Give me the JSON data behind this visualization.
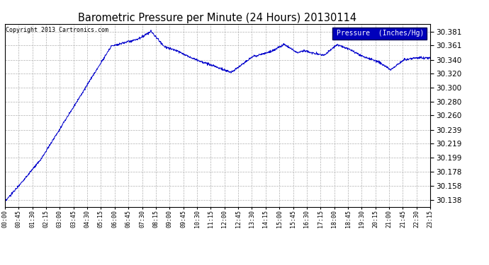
{
  "title": "Barometric Pressure per Minute (24 Hours) 20130114",
  "copyright": "Copyright 2013 Cartronics.com",
  "legend_label": "Pressure  (Inches/Hg)",
  "yticks": [
    30.138,
    30.158,
    30.178,
    30.199,
    30.219,
    30.239,
    30.26,
    30.28,
    30.3,
    30.32,
    30.34,
    30.361,
    30.381
  ],
  "ymin": 30.128,
  "ymax": 30.392,
  "line_color": "#0000cc",
  "background_color": "#ffffff",
  "grid_color": "#b0b0b0",
  "title_color": "#000000",
  "xtick_labels": [
    "00:00",
    "00:45",
    "01:30",
    "02:15",
    "03:00",
    "03:45",
    "04:30",
    "05:15",
    "06:00",
    "06:45",
    "07:30",
    "08:15",
    "09:00",
    "09:45",
    "10:30",
    "11:15",
    "12:00",
    "12:45",
    "13:30",
    "14:15",
    "15:00",
    "15:45",
    "16:30",
    "17:15",
    "18:00",
    "18:45",
    "19:30",
    "20:15",
    "21:00",
    "21:45",
    "22:30",
    "23:15"
  ]
}
